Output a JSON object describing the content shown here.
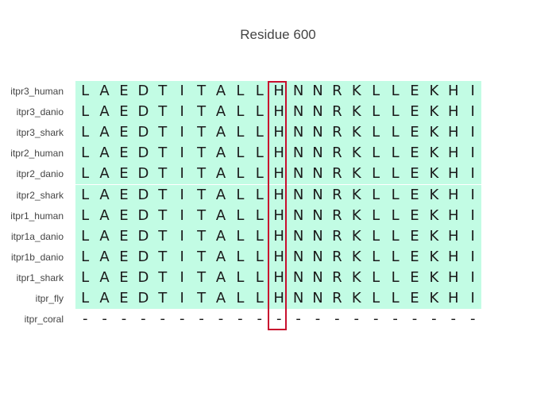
{
  "title": "Residue 600",
  "highlight_column_index": 10,
  "colors": {
    "aligned_background": "#c2fce4",
    "highlight_border": "#c8102e",
    "text": "#1a1a1a",
    "label_text": "#444444"
  },
  "rows": [
    {
      "label": "itpr3_human",
      "sequence": [
        "L",
        "A",
        "E",
        "D",
        "T",
        "I",
        "T",
        "A",
        "L",
        "L",
        "H",
        "N",
        "N",
        "R",
        "K",
        "L",
        "L",
        "E",
        "K",
        "H",
        "I"
      ]
    },
    {
      "label": "itpr3_danio",
      "sequence": [
        "L",
        "A",
        "E",
        "D",
        "T",
        "I",
        "T",
        "A",
        "L",
        "L",
        "H",
        "N",
        "N",
        "R",
        "K",
        "L",
        "L",
        "E",
        "K",
        "H",
        "I"
      ]
    },
    {
      "label": "itpr3_shark",
      "sequence": [
        "L",
        "A",
        "E",
        "D",
        "T",
        "I",
        "T",
        "A",
        "L",
        "L",
        "H",
        "N",
        "N",
        "R",
        "K",
        "L",
        "L",
        "E",
        "K",
        "H",
        "I"
      ]
    },
    {
      "label": "itpr2_human",
      "sequence": [
        "L",
        "A",
        "E",
        "D",
        "T",
        "I",
        "T",
        "A",
        "L",
        "L",
        "H",
        "N",
        "N",
        "R",
        "K",
        "L",
        "L",
        "E",
        "K",
        "H",
        "I"
      ]
    },
    {
      "label": "itpr2_danio",
      "sequence": [
        "L",
        "A",
        "E",
        "D",
        "T",
        "I",
        "T",
        "A",
        "L",
        "L",
        "H",
        "N",
        "N",
        "R",
        "K",
        "L",
        "L",
        "E",
        "K",
        "H",
        "I"
      ]
    },
    {
      "label": "itpr2_shark",
      "sequence": [
        "L",
        "A",
        "E",
        "D",
        "T",
        "I",
        "T",
        "A",
        "L",
        "L",
        "H",
        "N",
        "N",
        "R",
        "K",
        "L",
        "L",
        "E",
        "K",
        "H",
        "I"
      ]
    },
    {
      "label": "itpr1_human",
      "sequence": [
        "L",
        "A",
        "E",
        "D",
        "T",
        "I",
        "T",
        "A",
        "L",
        "L",
        "H",
        "N",
        "N",
        "R",
        "K",
        "L",
        "L",
        "E",
        "K",
        "H",
        "I"
      ]
    },
    {
      "label": "itpr1a_danio",
      "sequence": [
        "L",
        "A",
        "E",
        "D",
        "T",
        "I",
        "T",
        "A",
        "L",
        "L",
        "H",
        "N",
        "N",
        "R",
        "K",
        "L",
        "L",
        "E",
        "K",
        "H",
        "I"
      ]
    },
    {
      "label": "itpr1b_danio",
      "sequence": [
        "L",
        "A",
        "E",
        "D",
        "T",
        "I",
        "T",
        "A",
        "L",
        "L",
        "H",
        "N",
        "N",
        "R",
        "K",
        "L",
        "L",
        "E",
        "K",
        "H",
        "I"
      ]
    },
    {
      "label": "itpr1_shark",
      "sequence": [
        "L",
        "A",
        "E",
        "D",
        "T",
        "I",
        "T",
        "A",
        "L",
        "L",
        "H",
        "N",
        "N",
        "R",
        "K",
        "L",
        "L",
        "E",
        "K",
        "H",
        "I"
      ]
    },
    {
      "label": "itpr_fly",
      "sequence": [
        "L",
        "A",
        "E",
        "D",
        "T",
        "I",
        "T",
        "A",
        "L",
        "L",
        "H",
        "N",
        "N",
        "R",
        "K",
        "L",
        "L",
        "E",
        "K",
        "H",
        "I"
      ]
    },
    {
      "label": "itpr_coral",
      "sequence": [
        "-",
        "-",
        "-",
        "-",
        "-",
        "-",
        "-",
        "-",
        "-",
        "-",
        "-",
        "-",
        "-",
        "-",
        "-",
        "-",
        "-",
        "-",
        "-",
        "-",
        "-"
      ]
    }
  ]
}
